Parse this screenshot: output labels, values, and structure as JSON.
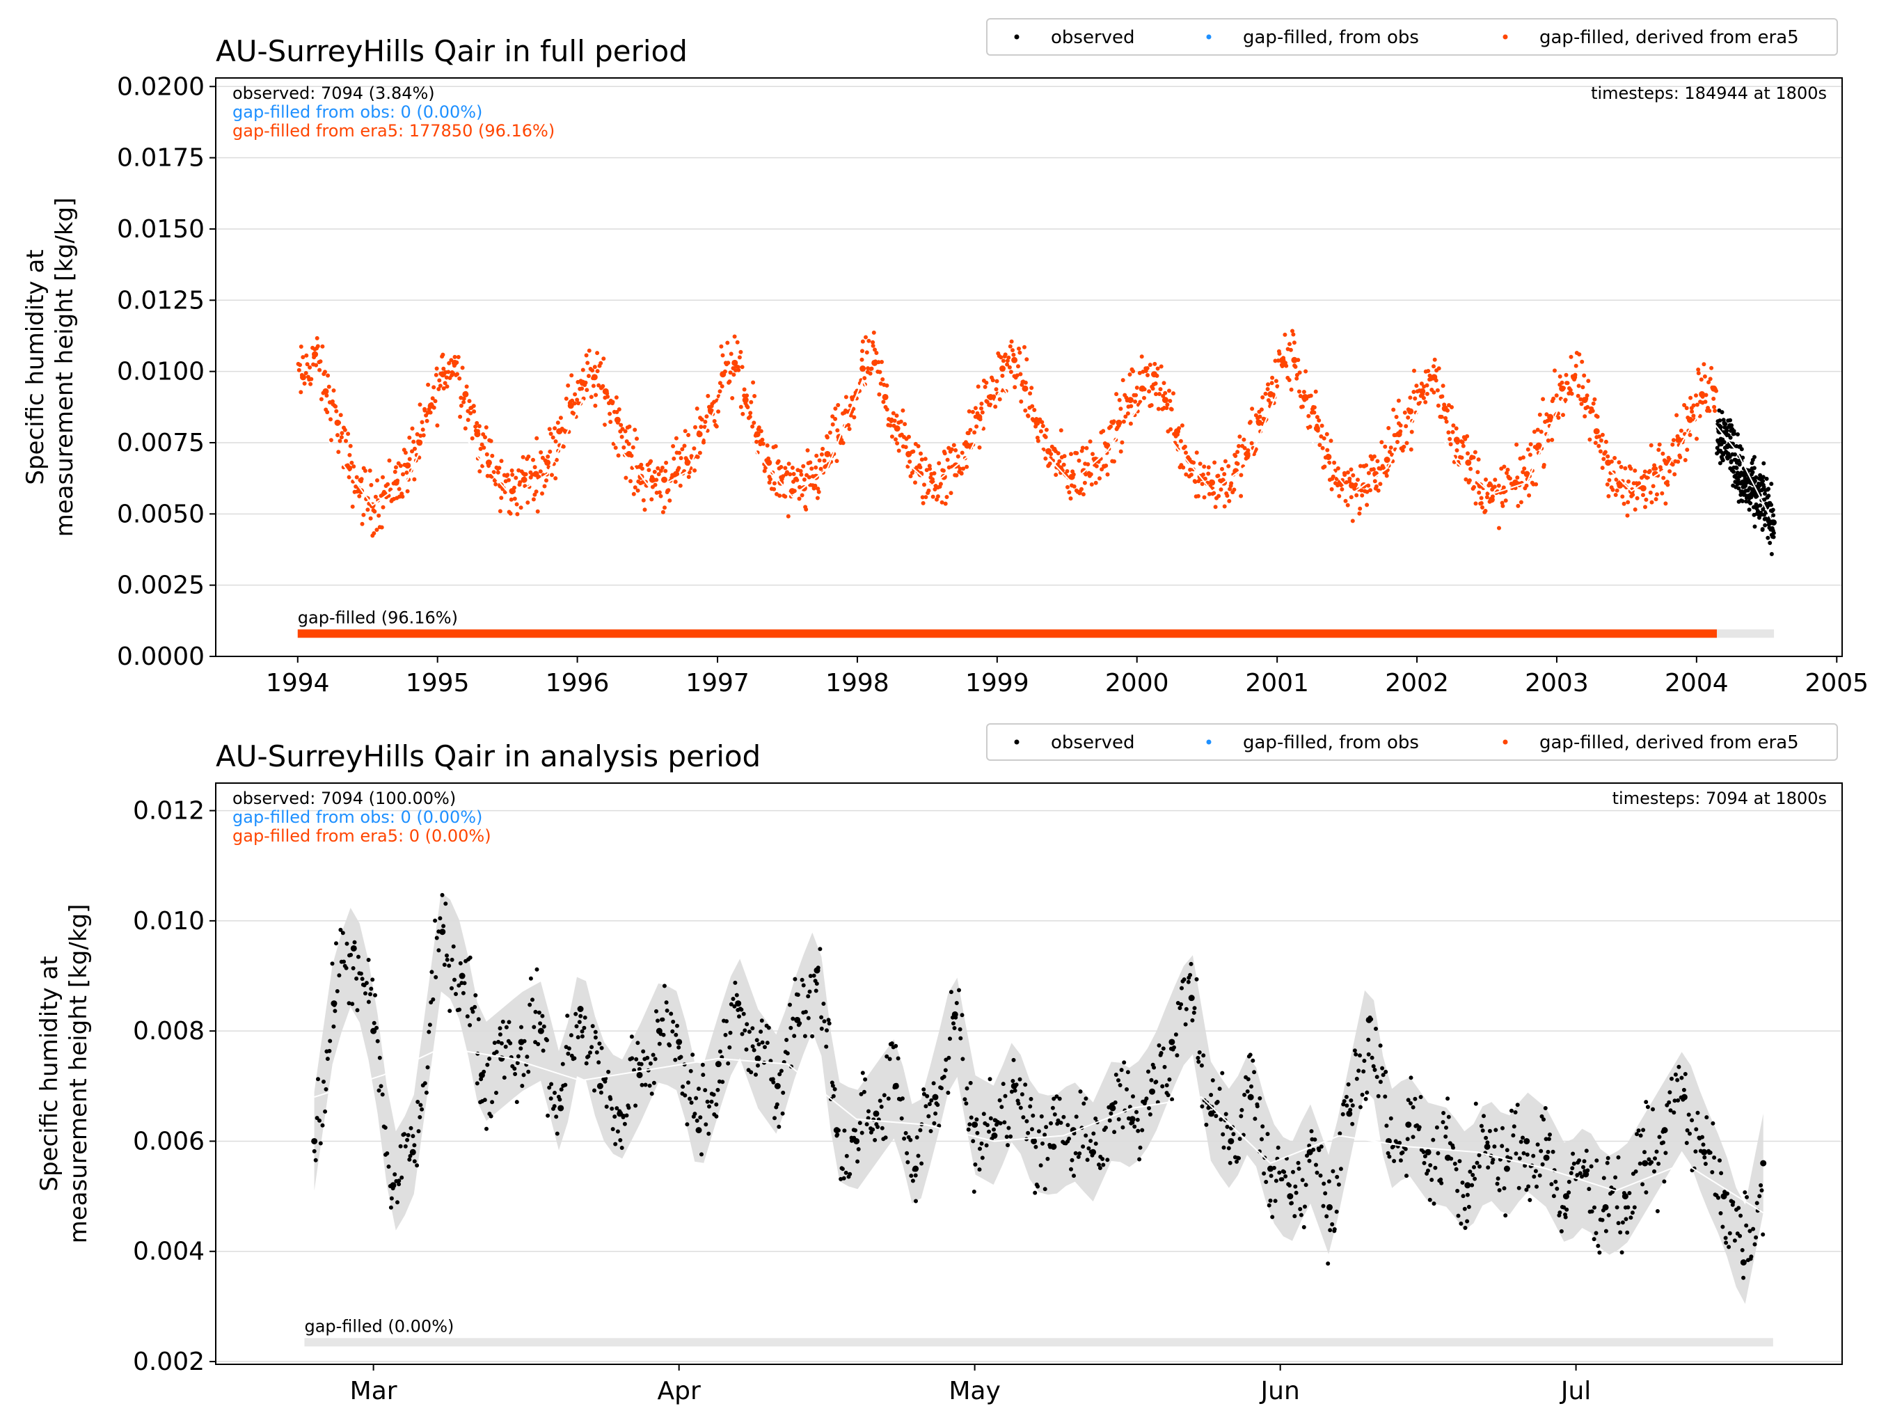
{
  "colors": {
    "observed": "#000000",
    "gapfilled_obs": "#1e90ff",
    "gapfilled_era5": "#ff4500",
    "band": "#dcdcdc",
    "mean_line": "#ffffff",
    "grid": "#dcdcdc"
  },
  "legend_labels": [
    "observed",
    "gap-filled, from obs",
    "gap-filled, derived from era5"
  ],
  "chart_data": [
    {
      "type": "scatter",
      "title": "AU-SurreyHills Qair in full period",
      "ylabel": "Specific humidity at\nmeasurement height [kg/kg]",
      "xlabel": "",
      "grid": true,
      "legend_position": "top-right",
      "xlim": [
        "1993-06-01",
        "2005-01-15"
      ],
      "ylim": [
        0.0,
        0.0203
      ],
      "xticks": [
        "1994-01-01",
        "1995-01-01",
        "1996-01-01",
        "1997-01-01",
        "1998-01-01",
        "1999-01-01",
        "2000-01-01",
        "2001-01-01",
        "2002-01-01",
        "2003-01-01",
        "2004-01-01",
        "2005-01-01"
      ],
      "xtick_labels": [
        "1994",
        "1995",
        "1996",
        "1997",
        "1998",
        "1999",
        "2000",
        "2001",
        "2002",
        "2003",
        "2004",
        "2005"
      ],
      "yticks": [
        0.0,
        0.0025,
        0.005,
        0.0075,
        0.01,
        0.0125,
        0.015,
        0.0175,
        0.02
      ],
      "ytick_labels": [
        "0.0000",
        "0.0025",
        "0.0050",
        "0.0075",
        "0.0100",
        "0.0125",
        "0.0150",
        "0.0175",
        "0.0200"
      ],
      "stats": {
        "observed": "observed: 7094 (3.84%)",
        "gapfilled_obs": "gap-filled from obs: 0 (0.00%)",
        "gapfilled_era5": "gap-filled from era5: 177850 (96.16%)",
        "timesteps": "timesteps: 184944 at 1800s"
      },
      "gap_bar": {
        "label": "gap-filled (96.16%)",
        "value": 0.0008,
        "range": [
          "1994-01-01",
          "2004-07-21"
        ],
        "filled_until": "2004-02-23"
      },
      "series": [
        {
          "name": "gap-filled, derived from era5",
          "color": "#ff4500",
          "range": [
            "1994-01-01",
            "2004-02-23"
          ],
          "x": [
            "1994-01-15",
            "1994-02-15",
            "1994-03-15",
            "1994-04-15",
            "1994-05-15",
            "1994-06-15",
            "1994-07-15",
            "1994-08-15",
            "1994-09-15",
            "1994-10-15",
            "1994-11-15",
            "1994-12-15",
            "1995-01-15",
            "1995-02-15",
            "1995-03-15",
            "1995-04-15",
            "1995-05-15",
            "1995-06-15",
            "1995-07-15",
            "1995-08-15",
            "1995-09-15",
            "1995-10-15",
            "1995-11-15",
            "1995-12-15",
            "1996-01-15",
            "1996-02-15",
            "1996-03-15",
            "1996-04-15",
            "1996-05-15",
            "1996-06-15",
            "1996-07-15",
            "1996-08-15",
            "1996-09-15",
            "1996-10-15",
            "1996-11-15",
            "1996-12-15",
            "1997-01-15",
            "1997-02-15",
            "1997-03-15",
            "1997-04-15",
            "1997-05-15",
            "1997-06-15",
            "1997-07-15",
            "1997-08-15",
            "1997-09-15",
            "1997-10-15",
            "1997-11-15",
            "1997-12-15",
            "1998-01-15",
            "1998-02-15",
            "1998-03-15",
            "1998-04-15",
            "1998-05-15",
            "1998-06-15",
            "1998-07-15",
            "1998-08-15",
            "1998-09-15",
            "1998-10-15",
            "1998-11-15",
            "1998-12-15",
            "1999-01-15",
            "1999-02-15",
            "1999-03-15",
            "1999-04-15",
            "1999-05-15",
            "1999-06-15",
            "1999-07-15",
            "1999-08-15",
            "1999-09-15",
            "1999-10-15",
            "1999-11-15",
            "1999-12-15",
            "2000-01-15",
            "2000-02-15",
            "2000-03-15",
            "2000-04-15",
            "2000-05-15",
            "2000-06-15",
            "2000-07-15",
            "2000-08-15",
            "2000-09-15",
            "2000-10-15",
            "2000-11-15",
            "2000-12-15",
            "2001-01-15",
            "2001-02-15",
            "2001-03-15",
            "2001-04-15",
            "2001-05-15",
            "2001-06-15",
            "2001-07-15",
            "2001-08-15",
            "2001-09-15",
            "2001-10-15",
            "2001-11-15",
            "2001-12-15",
            "2002-01-15",
            "2002-02-15",
            "2002-03-15",
            "2002-04-15",
            "2002-05-15",
            "2002-06-15",
            "2002-07-15",
            "2002-08-15",
            "2002-09-15",
            "2002-10-15",
            "2002-11-15",
            "2002-12-15",
            "2003-01-15",
            "2003-02-15",
            "2003-03-15",
            "2003-04-15",
            "2003-05-15",
            "2003-06-15",
            "2003-07-15",
            "2003-08-15",
            "2003-09-15",
            "2003-10-15",
            "2003-11-15",
            "2003-12-15",
            "2004-01-15",
            "2004-02-15"
          ],
          "y": [
            0.0098,
            0.0106,
            0.0093,
            0.0082,
            0.0066,
            0.0058,
            0.0053,
            0.0057,
            0.0061,
            0.0067,
            0.0075,
            0.0088,
            0.0099,
            0.0103,
            0.0092,
            0.0078,
            0.0068,
            0.006,
            0.0058,
            0.0062,
            0.0064,
            0.0068,
            0.0079,
            0.0088,
            0.0096,
            0.0098,
            0.0093,
            0.0083,
            0.0071,
            0.0063,
            0.0062,
            0.0062,
            0.0064,
            0.0068,
            0.0078,
            0.0086,
            0.0099,
            0.0103,
            0.009,
            0.0078,
            0.0068,
            0.0061,
            0.0058,
            0.0059,
            0.0063,
            0.0071,
            0.0077,
            0.0086,
            0.0101,
            0.0103,
            0.0091,
            0.008,
            0.0071,
            0.0064,
            0.0061,
            0.0063,
            0.0067,
            0.0074,
            0.0084,
            0.0091,
            0.0101,
            0.0104,
            0.0094,
            0.0082,
            0.0072,
            0.0066,
            0.0063,
            0.0065,
            0.0069,
            0.0074,
            0.0082,
            0.009,
            0.0094,
            0.0099,
            0.009,
            0.0079,
            0.0069,
            0.0063,
            0.0061,
            0.0061,
            0.0065,
            0.0071,
            0.0082,
            0.0092,
            0.0104,
            0.0104,
            0.0091,
            0.008,
            0.007,
            0.0061,
            0.006,
            0.006,
            0.0064,
            0.0069,
            0.0078,
            0.0086,
            0.0093,
            0.0098,
            0.0087,
            0.0076,
            0.0068,
            0.006,
            0.0055,
            0.0058,
            0.0061,
            0.0064,
            0.0074,
            0.0084,
            0.0094,
            0.0098,
            0.009,
            0.0079,
            0.0068,
            0.006,
            0.0058,
            0.0059,
            0.0064,
            0.0068,
            0.0076,
            0.0083,
            0.0092,
            0.0094
          ]
        },
        {
          "name": "observed",
          "color": "#000000",
          "range": [
            "2004-02-23",
            "2004-07-21"
          ],
          "x": [
            "2004-03-01",
            "2004-04-01",
            "2004-05-01",
            "2004-06-01",
            "2004-07-01",
            "2004-07-20"
          ],
          "y": [
            0.0079,
            0.0074,
            0.0061,
            0.0057,
            0.0053,
            0.0047
          ]
        }
      ],
      "mean_line": {
        "x": [
          "1994-01-15",
          "1994-04-15",
          "1994-07-15",
          "1994-10-15",
          "1995-01-15",
          "1995-04-15",
          "1995-07-15",
          "1995-10-15",
          "1996-01-15",
          "1996-04-15",
          "1996-07-15",
          "1996-10-15",
          "1997-01-15",
          "1997-04-15",
          "1997-07-15",
          "1997-10-15",
          "1998-01-15",
          "1998-04-15",
          "1998-07-15",
          "1998-10-15",
          "1999-01-15",
          "1999-04-15",
          "1999-07-15",
          "1999-10-15",
          "2000-01-15",
          "2000-04-15",
          "2000-07-15",
          "2000-10-15",
          "2001-01-15",
          "2001-04-15",
          "2001-07-15",
          "2001-10-15",
          "2002-01-15",
          "2002-04-15",
          "2002-07-15",
          "2002-10-15",
          "2003-01-15",
          "2003-04-15",
          "2003-07-15",
          "2003-10-15",
          "2004-01-15",
          "2004-04-15",
          "2004-07-15"
        ],
        "y": [
          0.0092,
          0.007,
          0.0053,
          0.0062,
          0.0091,
          0.007,
          0.0056,
          0.0064,
          0.009,
          0.0074,
          0.0058,
          0.0065,
          0.0093,
          0.0071,
          0.0056,
          0.0066,
          0.0097,
          0.0071,
          0.006,
          0.007,
          0.0095,
          0.0074,
          0.0061,
          0.0072,
          0.0089,
          0.0073,
          0.0058,
          0.0067,
          0.0097,
          0.0072,
          0.0057,
          0.0066,
          0.0089,
          0.0068,
          0.0057,
          0.0061,
          0.009,
          0.007,
          0.0058,
          0.0066,
          0.0087,
          0.0072,
          0.0048
        ]
      }
    },
    {
      "type": "scatter",
      "title": "AU-SurreyHills Qair in analysis period",
      "ylabel": "Specific humidity at\nmeasurement height [kg/kg]",
      "xlabel": "",
      "grid": true,
      "legend_position": "top-right",
      "xlim": [
        "2004-02-14",
        "2004-07-28"
      ],
      "ylim": [
        0.00195,
        0.0125
      ],
      "xticks": [
        "2004-03-01",
        "2004-04-01",
        "2004-05-01",
        "2004-06-01",
        "2004-07-01"
      ],
      "xtick_labels": [
        "Mar",
        "Apr",
        "May",
        "Jun",
        "Jul"
      ],
      "yticks": [
        0.002,
        0.004,
        0.006,
        0.008,
        0.01,
        0.012
      ],
      "ytick_labels": [
        "0.002",
        "0.004",
        "0.006",
        "0.008",
        "0.010",
        "0.012"
      ],
      "stats": {
        "observed": "observed: 7094 (100.00%)",
        "gapfilled_obs": "gap-filled from obs: 0 (0.00%)",
        "gapfilled_era5": "gap-filled from era5: 0 (0.00%)",
        "timesteps": "timesteps: 7094 at 1800s"
      },
      "gap_bar": {
        "label": "gap-filled (0.00%)",
        "value": 0.00235,
        "range": [
          "2004-02-23",
          "2004-07-21"
        ],
        "filled_until": null
      },
      "series": [
        {
          "name": "observed",
          "color": "#000000",
          "x": [
            "2004-02-24",
            "2004-02-26",
            "2004-02-28",
            "2004-03-01",
            "2004-03-03",
            "2004-03-05",
            "2004-03-08",
            "2004-03-10",
            "2004-03-12",
            "2004-03-14",
            "2004-03-16",
            "2004-03-18",
            "2004-03-20",
            "2004-03-22",
            "2004-03-24",
            "2004-03-26",
            "2004-03-28",
            "2004-03-30",
            "2004-04-01",
            "2004-04-03",
            "2004-04-05",
            "2004-04-07",
            "2004-04-09",
            "2004-04-11",
            "2004-04-13",
            "2004-04-15",
            "2004-04-17",
            "2004-04-19",
            "2004-04-21",
            "2004-04-23",
            "2004-04-25",
            "2004-04-27",
            "2004-04-29",
            "2004-05-01",
            "2004-05-03",
            "2004-05-05",
            "2004-05-07",
            "2004-05-09",
            "2004-05-11",
            "2004-05-13",
            "2004-05-15",
            "2004-05-17",
            "2004-05-19",
            "2004-05-21",
            "2004-05-23",
            "2004-05-25",
            "2004-05-27",
            "2004-05-29",
            "2004-05-31",
            "2004-06-02",
            "2004-06-04",
            "2004-06-06",
            "2004-06-08",
            "2004-06-10",
            "2004-06-12",
            "2004-06-14",
            "2004-06-16",
            "2004-06-18",
            "2004-06-20",
            "2004-06-22",
            "2004-06-24",
            "2004-06-26",
            "2004-06-28",
            "2004-06-30",
            "2004-07-02",
            "2004-07-04",
            "2004-07-06",
            "2004-07-08",
            "2004-07-10",
            "2004-07-12",
            "2004-07-14",
            "2004-07-16",
            "2004-07-18",
            "2004-07-20"
          ],
          "y": [
            0.006,
            0.0085,
            0.0095,
            0.008,
            0.0052,
            0.0058,
            0.0098,
            0.009,
            0.0072,
            0.0075,
            0.0078,
            0.008,
            0.0066,
            0.0084,
            0.007,
            0.0065,
            0.0072,
            0.008,
            0.0078,
            0.0062,
            0.0074,
            0.0085,
            0.0075,
            0.007,
            0.0082,
            0.0091,
            0.0062,
            0.006,
            0.0065,
            0.007,
            0.0055,
            0.0068,
            0.0083,
            0.0063,
            0.0061,
            0.007,
            0.006,
            0.0059,
            0.0062,
            0.0058,
            0.0066,
            0.0064,
            0.0069,
            0.0078,
            0.0086,
            0.0065,
            0.006,
            0.0068,
            0.0055,
            0.005,
            0.0058,
            0.0048,
            0.0065,
            0.0082,
            0.006,
            0.0063,
            0.0058,
            0.0057,
            0.0052,
            0.0059,
            0.0055,
            0.006,
            0.0057,
            0.005,
            0.0054,
            0.0048,
            0.005,
            0.0056,
            0.0062,
            0.0068,
            0.0058,
            0.005,
            0.0038,
            0.0056
          ]
        }
      ],
      "mean_line": {
        "x": [
          "2004-02-24",
          "2004-03-02",
          "2004-03-08",
          "2004-03-15",
          "2004-03-22",
          "2004-03-29",
          "2004-04-05",
          "2004-04-12",
          "2004-04-19",
          "2004-04-26",
          "2004-05-03",
          "2004-05-10",
          "2004-05-17",
          "2004-05-24",
          "2004-05-31",
          "2004-06-07",
          "2004-06-14",
          "2004-06-21",
          "2004-06-28",
          "2004-07-05",
          "2004-07-12",
          "2004-07-20"
        ],
        "y": [
          0.0068,
          0.0072,
          0.0077,
          0.0075,
          0.0071,
          0.0073,
          0.0075,
          0.0074,
          0.0064,
          0.0063,
          0.006,
          0.0061,
          0.0066,
          0.0068,
          0.0056,
          0.0061,
          0.0059,
          0.0058,
          0.0055,
          0.0051,
          0.0056,
          0.0047
        ]
      }
    }
  ]
}
